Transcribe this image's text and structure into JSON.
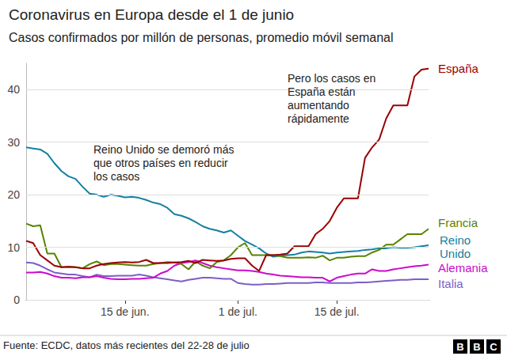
{
  "chart_data": {
    "type": "line",
    "title": "Coronavirus en Europa desde el 1 de junio",
    "subtitle": "Casos confirmados por millón de personas, promedio móvil semanal",
    "source": "Fuente: ECDC, datos más recientes del 22-28 de julio",
    "logo": "BBC",
    "annotations": [
      "Reino Unido se demoró más\nque otros países en reducir\nlos casos",
      "Pero los casos en\nEspaña están\naumentando\nrápidamente"
    ],
    "categories": [
      null,
      null,
      null,
      null,
      null,
      null,
      null,
      null,
      null,
      null,
      null,
      null,
      null,
      null,
      "15 de jun.",
      null,
      null,
      null,
      null,
      null,
      null,
      null,
      null,
      null,
      null,
      null,
      null,
      null,
      null,
      null,
      "1 de jul.",
      null,
      null,
      null,
      null,
      null,
      null,
      null,
      null,
      null,
      null,
      null,
      null,
      null,
      "15 de jul.",
      null,
      null,
      null,
      null,
      null,
      null,
      null,
      null,
      null,
      null,
      null,
      null,
      null
    ],
    "series": [
      {
        "name": "España",
        "color": "#990000",
        "values": [
          11.2,
          10.8,
          8.5,
          7.5,
          6.5,
          6.2,
          6.3,
          6.2,
          6.0,
          6.0,
          6.5,
          6.8,
          7.0,
          7.1,
          7.2,
          7.1,
          7.2,
          7.6,
          7.0,
          7.0,
          7.0,
          7.1,
          7.2,
          7.4,
          7.0,
          7.6,
          7.5,
          7.4,
          7.5,
          7.8,
          7.9,
          7.9,
          6.5,
          5.5,
          8.5,
          8.5,
          8.6,
          8.8,
          10.2,
          10.2,
          10.2,
          12.5,
          13.5,
          15,
          17.5,
          19.3,
          19.3,
          19.3,
          27,
          29,
          30.5,
          34.5,
          37,
          37,
          37,
          42.5,
          43.8,
          44
        ]
      },
      {
        "name": "Francia",
        "color": "#588300",
        "values": [
          14.5,
          14,
          14.2,
          8.8,
          8.8,
          6.2,
          6.3,
          6.2,
          6.0,
          6.8,
          7.3,
          6.6,
          6.8,
          6.8,
          6.7,
          6.6,
          6.5,
          6.5,
          6.8,
          7.0,
          7.2,
          7.1,
          6.8,
          5.8,
          7.3,
          6.5,
          6.0,
          7.2,
          7.5,
          8.5,
          10,
          10.8,
          8.5,
          8.5,
          8.5,
          8.5,
          8.3,
          8.0,
          8.0,
          8.0,
          8.1,
          8.0,
          8.4,
          7.5,
          8.0,
          8.0,
          8.2,
          8.3,
          8.3,
          9.0,
          9.5,
          10.5,
          10.5,
          11.5,
          12.5,
          12.5,
          12.5,
          13.5
        ]
      },
      {
        "name": "Reino Unido",
        "color": "#1380A1",
        "values": [
          29,
          28.8,
          28.6,
          27.8,
          26,
          24.5,
          23.5,
          23,
          21.5,
          20.2,
          20,
          19.6,
          20,
          19.8,
          19.5,
          19.6,
          19.4,
          19,
          18.5,
          18.2,
          17.5,
          16.3,
          16,
          15.5,
          14.8,
          14,
          13.5,
          13.2,
          12.8,
          13.2,
          12.2,
          11.2,
          10.5,
          9.8,
          8.8,
          8.2,
          8.4,
          8.5,
          8.6,
          9,
          9.2,
          9.1,
          9.0,
          8.8,
          9,
          9.1,
          9.2,
          9.3,
          9.5,
          9.6,
          9.8,
          9.8,
          10,
          9.9,
          9.9,
          10,
          10.2,
          10.4
        ]
      },
      {
        "name": "Alemania",
        "color": "#CC0ACC",
        "values": [
          5.2,
          5.2,
          5.3,
          5.0,
          4.5,
          4.2,
          4.2,
          4.1,
          4.3,
          4.3,
          4.5,
          4.2,
          4.0,
          3.9,
          3.9,
          4.0,
          4.0,
          4.1,
          4.2,
          5.0,
          5.5,
          6.5,
          7.0,
          7.2,
          7.5,
          7.0,
          6.5,
          6.2,
          6.0,
          5.8,
          5.6,
          5.6,
          5.5,
          5.3,
          5.0,
          4.8,
          4.6,
          4.5,
          4.4,
          4.3,
          4.3,
          4.2,
          4.2,
          3.5,
          4.2,
          4.5,
          4.8,
          5.0,
          5.0,
          5.8,
          5.5,
          5.5,
          5.8,
          6.0,
          6.2,
          6.4,
          6.5,
          6.7
        ]
      },
      {
        "name": "Italia",
        "color": "#7B5FC6",
        "values": [
          7.1,
          7.0,
          6.5,
          5.8,
          5.2,
          5.0,
          4.8,
          4.8,
          4.5,
          4.3,
          4.8,
          4.5,
          4.5,
          4.6,
          4.6,
          4.6,
          4.8,
          4.6,
          4.3,
          4.1,
          3.9,
          3.7,
          3.5,
          3.8,
          4.0,
          4.2,
          4.2,
          4.1,
          4.0,
          4.0,
          3.2,
          3.0,
          2.9,
          2.9,
          3.0,
          3.0,
          3.1,
          3.2,
          3.2,
          3.2,
          3.2,
          3.3,
          3.3,
          3.2,
          3.2,
          3.2,
          3.2,
          3.3,
          3.3,
          3.4,
          3.5,
          3.6,
          3.7,
          3.8,
          3.8,
          3.9,
          3.9,
          3.9
        ]
      }
    ],
    "ylim": [
      0,
      45
    ],
    "yticks": [
      0,
      10,
      20,
      30,
      40
    ],
    "grid": true
  }
}
